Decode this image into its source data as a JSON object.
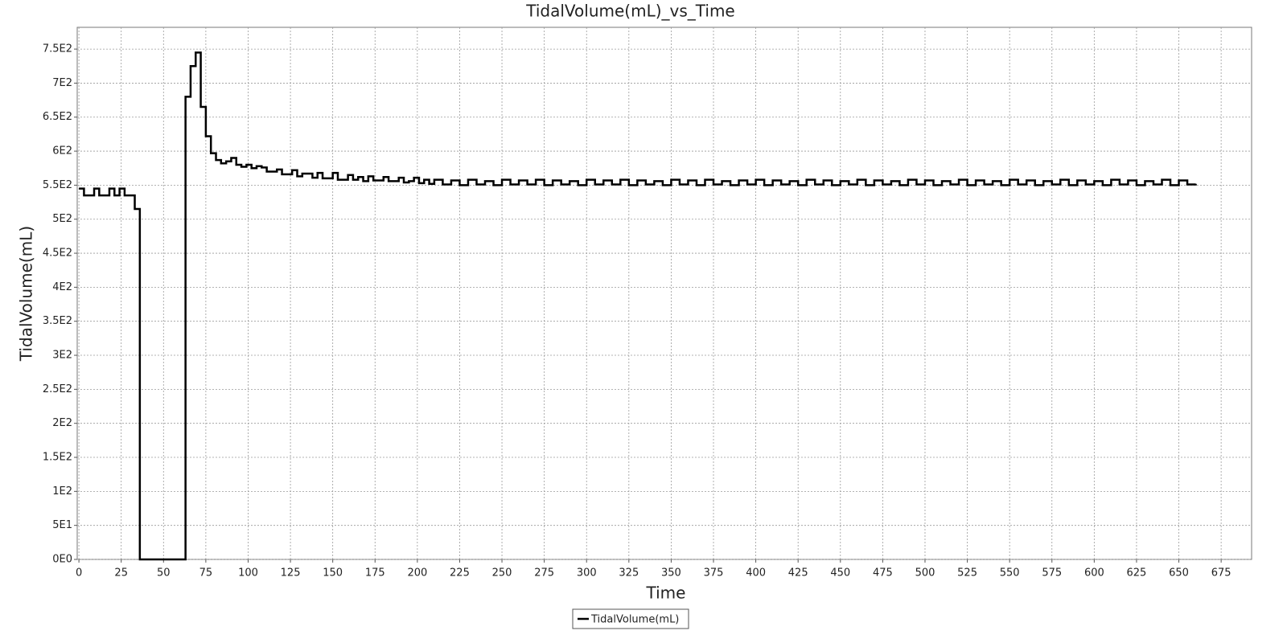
{
  "chart_data": {
    "type": "line",
    "step": "post",
    "title": "TidalVolume(mL)_vs_Time",
    "x_label": "Time",
    "y_label": "TidalVolume(mL)",
    "grid": true,
    "legend": "bottom",
    "xlim": [
      -1,
      693
    ],
    "ylim": [
      0,
      782
    ],
    "xticks": [
      0,
      25,
      50,
      75,
      100,
      125,
      150,
      175,
      200,
      225,
      250,
      275,
      300,
      325,
      350,
      375,
      400,
      425,
      450,
      475,
      500,
      525,
      550,
      575,
      600,
      625,
      650,
      675
    ],
    "yticks": [
      {
        "value": 0,
        "label": "0E0"
      },
      {
        "value": 50,
        "label": "5E1"
      },
      {
        "value": 100,
        "label": "1E2"
      },
      {
        "value": 150,
        "label": "1.5E2"
      },
      {
        "value": 200,
        "label": "2E2"
      },
      {
        "value": 250,
        "label": "2.5E2"
      },
      {
        "value": 300,
        "label": "3E2"
      },
      {
        "value": 350,
        "label": "3.5E2"
      },
      {
        "value": 400,
        "label": "4E2"
      },
      {
        "value": 450,
        "label": "4.5E2"
      },
      {
        "value": 500,
        "label": "5E2"
      },
      {
        "value": 550,
        "label": "5.5E2"
      },
      {
        "value": 600,
        "label": "6E2"
      },
      {
        "value": 650,
        "label": "6.5E2"
      },
      {
        "value": 700,
        "label": "7E2"
      },
      {
        "value": 750,
        "label": "7.5E2"
      }
    ],
    "series": [
      {
        "name": "TidalVolume(mL)",
        "color": "#000000",
        "x": [
          0,
          3,
          6,
          9,
          12,
          15,
          18,
          21,
          24,
          27,
          30,
          33,
          36,
          39,
          42,
          45,
          48,
          51,
          54,
          57,
          60,
          63,
          66,
          69,
          72,
          75,
          78,
          81,
          84,
          87,
          90,
          93,
          96,
          99,
          102,
          105,
          108,
          111,
          114,
          117,
          120,
          123,
          126,
          129,
          132,
          135,
          138,
          141,
          144,
          147,
          150,
          153,
          156,
          159,
          162,
          165,
          168,
          171,
          174,
          177,
          180,
          183,
          186,
          189,
          192,
          195,
          198,
          201,
          204,
          207,
          210,
          215,
          220,
          225,
          230,
          235,
          240,
          245,
          250,
          255,
          260,
          265,
          270,
          275,
          280,
          285,
          290,
          295,
          300,
          305,
          310,
          315,
          320,
          325,
          330,
          335,
          340,
          345,
          350,
          355,
          360,
          365,
          370,
          375,
          380,
          385,
          390,
          395,
          400,
          405,
          410,
          415,
          420,
          425,
          430,
          435,
          440,
          445,
          450,
          455,
          460,
          465,
          470,
          475,
          480,
          485,
          490,
          495,
          500,
          505,
          510,
          515,
          520,
          525,
          530,
          535,
          540,
          545,
          550,
          555,
          560,
          565,
          570,
          575,
          580,
          585,
          590,
          595,
          600,
          605,
          610,
          615,
          620,
          625,
          630,
          635,
          640,
          645,
          650,
          655,
          660
        ],
        "values": [
          545,
          535,
          535,
          545,
          535,
          535,
          545,
          535,
          545,
          535,
          535,
          515,
          0,
          0,
          0,
          0,
          0,
          0,
          0,
          0,
          0,
          680,
          725,
          745,
          665,
          622,
          597,
          587,
          582,
          585,
          590,
          580,
          577,
          580,
          575,
          578,
          576,
          570,
          570,
          573,
          566,
          566,
          572,
          563,
          567,
          567,
          561,
          568,
          560,
          560,
          568,
          558,
          558,
          565,
          558,
          562,
          556,
          563,
          557,
          557,
          562,
          556,
          556,
          561,
          554,
          556,
          561,
          553,
          558,
          552,
          558,
          551,
          557,
          550,
          558,
          551,
          556,
          550,
          558,
          551,
          557,
          551,
          558,
          550,
          557,
          551,
          556,
          550,
          558,
          551,
          557,
          551,
          558,
          550,
          557,
          551,
          556,
          550,
          558,
          551,
          557,
          550,
          558,
          551,
          556,
          550,
          557,
          551,
          558,
          550,
          557,
          551,
          556,
          550,
          558,
          551,
          557,
          550,
          556,
          551,
          558,
          550,
          557,
          551,
          556,
          550,
          558,
          551,
          557,
          550,
          556,
          551,
          558,
          550,
          557,
          551,
          556,
          550,
          558,
          551,
          557,
          550,
          556,
          551,
          558,
          550,
          557,
          551,
          556,
          550,
          558,
          551,
          557,
          550,
          556,
          551,
          558,
          550,
          557,
          551,
          552
        ]
      }
    ]
  }
}
